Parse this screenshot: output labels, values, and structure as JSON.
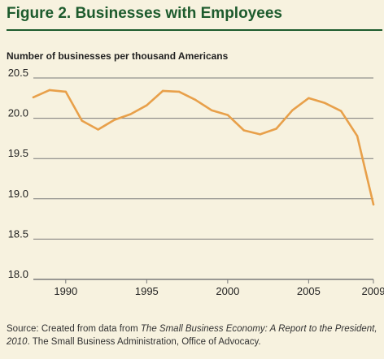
{
  "title": "Figure 2.  Businesses with Employees",
  "source": {
    "prefix": "Source: Created from data from ",
    "italic": "The Small Business Economy: A Report to the President, 2010",
    "suffix": ". The Small Business Administration, Office of Advocacy."
  },
  "colors": {
    "title": "#1d5b2d",
    "line": "#e8a04a",
    "grid": "#7a7a7a",
    "background": "#f7f2df"
  },
  "chart_data": {
    "type": "line",
    "title": "Figure 2.  Businesses with Employees",
    "ylabel": "Number of businesses per thousand Americans",
    "xlabel": "",
    "grid": true,
    "xlim": [
      1988,
      2009
    ],
    "ylim": [
      18.0,
      20.5
    ],
    "xticks": [
      1990,
      1995,
      2000,
      2005,
      2009
    ],
    "yticks": [
      18.0,
      18.5,
      19.0,
      19.5,
      20.0,
      20.5
    ],
    "ytick_labels": [
      "18.0",
      "18.5",
      "19.0",
      "19.5",
      "20.0",
      "20.5"
    ],
    "x": [
      1988,
      1989,
      1990,
      1991,
      1992,
      1993,
      1994,
      1995,
      1996,
      1997,
      1998,
      1999,
      2000,
      2001,
      2002,
      2003,
      2004,
      2005,
      2006,
      2007,
      2008,
      2009
    ],
    "values": [
      20.26,
      20.35,
      20.33,
      19.97,
      19.86,
      19.98,
      20.05,
      20.16,
      20.34,
      20.33,
      20.23,
      20.1,
      20.04,
      19.85,
      19.8,
      19.87,
      20.1,
      20.25,
      20.19,
      20.09,
      19.78,
      18.93
    ]
  }
}
